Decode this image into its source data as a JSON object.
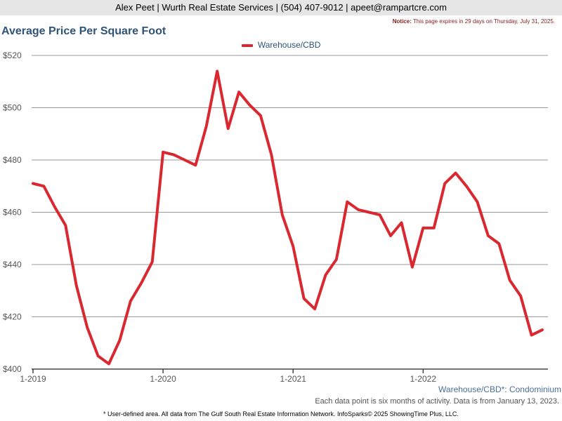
{
  "header": {
    "contact": "Alex Peet | Wurth Real Estate Services | (504) 407-9012 | apeet@rampartcre.com",
    "notice_label": "Notice:",
    "notice_text": "This page expires in 29 days on Thursday, July 31, 2025."
  },
  "chart_data": {
    "type": "line",
    "title": "Average Price Per Square Foot",
    "xlabel": "",
    "ylabel": "",
    "x_ticks": [
      "1-2019",
      "1-2020",
      "1-2021",
      "1-2022"
    ],
    "y_ticks": [
      "$400",
      "$420",
      "$440",
      "$460",
      "$480",
      "$500",
      "$520"
    ],
    "ylim": [
      400,
      520
    ],
    "grid": true,
    "legend_position": "top-center",
    "series": [
      {
        "name": "Warehouse/CBD",
        "color": "#d9282f",
        "x": [
          "2019-01",
          "2019-02",
          "2019-03",
          "2019-04",
          "2019-05",
          "2019-06",
          "2019-07",
          "2019-08",
          "2019-09",
          "2019-10",
          "2019-11",
          "2019-12",
          "2020-01",
          "2020-02",
          "2020-03",
          "2020-04",
          "2020-05",
          "2020-06",
          "2020-07",
          "2020-08",
          "2020-09",
          "2020-10",
          "2020-11",
          "2020-12",
          "2021-01",
          "2021-02",
          "2021-03",
          "2021-04",
          "2021-05",
          "2021-06",
          "2021-07",
          "2021-08",
          "2021-09",
          "2021-10",
          "2021-11",
          "2021-12",
          "2022-01",
          "2022-02",
          "2022-03",
          "2022-04",
          "2022-05",
          "2022-06",
          "2022-07",
          "2022-08",
          "2022-09",
          "2022-10",
          "2022-11",
          "2022-12"
        ],
        "values": [
          471,
          470,
          462,
          455,
          432,
          416,
          405,
          402,
          411,
          426,
          433,
          441,
          483,
          482,
          480,
          478,
          493,
          514,
          492,
          506,
          501,
          497,
          482,
          459,
          447,
          427,
          423,
          436,
          442,
          464,
          461,
          460,
          459,
          451,
          456,
          439,
          454,
          454,
          471,
          475,
          470,
          464,
          451,
          448,
          434,
          428,
          413,
          415
        ]
      }
    ]
  },
  "area_label": "Warehouse/CBD*: Condominium",
  "data_note": "Each data point is six months of activity. Data is from January 13, 2023.",
  "footer": "* User-defined area. All data from The Gulf South Real Estate Information Network. InfoSparks© 2025 ShowingTime Plus, LLC."
}
